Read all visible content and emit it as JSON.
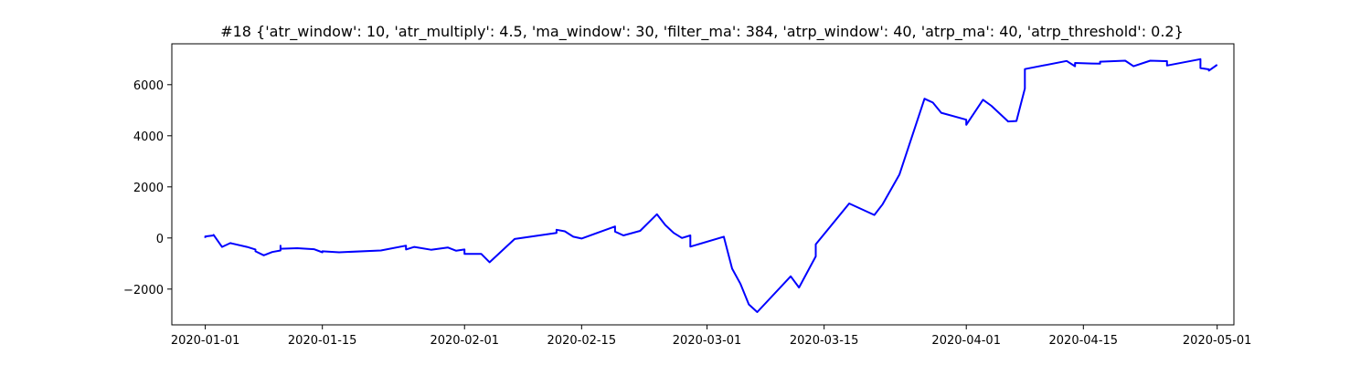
{
  "chart_data": {
    "type": "line",
    "title": "#18 {'atr_window': 10, 'atr_multiply': 4.5, 'ma_window': 30, 'filter_ma': 384, 'atrp_window': 40, 'atrp_ma': 40, 'atrp_threshold': 0.2}",
    "xlabel": "",
    "ylabel": "",
    "x_axis": {
      "type": "date",
      "range": [
        "2019-12-28",
        "2020-05-03"
      ],
      "ticks": [
        "2020-01-01",
        "2020-01-15",
        "2020-02-01",
        "2020-02-15",
        "2020-03-01",
        "2020-03-15",
        "2020-04-01",
        "2020-04-15",
        "2020-05-01"
      ]
    },
    "y_axis": {
      "range": [
        -3400,
        7600
      ],
      "ticks": [
        -2000,
        0,
        2000,
        4000,
        6000
      ],
      "tick_labels": [
        "−2000",
        "0",
        "2000",
        "4000",
        "6000"
      ]
    },
    "grid": false,
    "legend": "none",
    "series": [
      {
        "color": "#0000ff",
        "points": [
          [
            "2020-01-01",
            0
          ],
          [
            "2020-01-01",
            60
          ],
          [
            "2020-01-02",
            100
          ],
          [
            "2020-01-02",
            120
          ],
          [
            "2020-01-03",
            -350
          ],
          [
            "2020-01-04",
            -200
          ],
          [
            "2020-01-06",
            -350
          ],
          [
            "2020-01-07",
            -450
          ],
          [
            "2020-01-07",
            -520
          ],
          [
            "2020-01-08",
            -680
          ],
          [
            "2020-01-09",
            -550
          ],
          [
            "2020-01-10",
            -490
          ],
          [
            "2020-01-10",
            -300
          ],
          [
            "2020-01-10",
            -420
          ],
          [
            "2020-01-12",
            -400
          ],
          [
            "2020-01-14",
            -440
          ],
          [
            "2020-01-15",
            -560
          ],
          [
            "2020-01-15",
            -520
          ],
          [
            "2020-01-17",
            -560
          ],
          [
            "2020-01-22",
            -490
          ],
          [
            "2020-01-25",
            -300
          ],
          [
            "2020-01-25",
            -450
          ],
          [
            "2020-01-26",
            -350
          ],
          [
            "2020-01-28",
            -460
          ],
          [
            "2020-01-30",
            -370
          ],
          [
            "2020-01-31",
            -500
          ],
          [
            "2020-02-01",
            -450
          ],
          [
            "2020-02-01",
            -620
          ],
          [
            "2020-02-03",
            -620
          ],
          [
            "2020-02-04",
            -950
          ],
          [
            "2020-02-07",
            -40
          ],
          [
            "2020-02-12",
            200
          ],
          [
            "2020-02-12",
            320
          ],
          [
            "2020-02-13",
            260
          ],
          [
            "2020-02-14",
            50
          ],
          [
            "2020-02-15",
            -20
          ],
          [
            "2020-02-19",
            450
          ],
          [
            "2020-02-19",
            250
          ],
          [
            "2020-02-20",
            100
          ],
          [
            "2020-02-22",
            280
          ],
          [
            "2020-02-24",
            930
          ],
          [
            "2020-02-25",
            510
          ],
          [
            "2020-02-26",
            200
          ],
          [
            "2020-02-27",
            0
          ],
          [
            "2020-02-28",
            100
          ],
          [
            "2020-02-28",
            -340
          ],
          [
            "2020-03-03",
            50
          ],
          [
            "2020-03-04",
            -1200
          ],
          [
            "2020-03-05",
            -1800
          ],
          [
            "2020-03-06",
            -2600
          ],
          [
            "2020-03-07",
            -2900
          ],
          [
            "2020-03-11",
            -1500
          ],
          [
            "2020-03-12",
            -1940
          ],
          [
            "2020-03-14",
            -720
          ],
          [
            "2020-03-14",
            -250
          ],
          [
            "2020-03-18",
            1350
          ],
          [
            "2020-03-21",
            900
          ],
          [
            "2020-03-22",
            1320
          ],
          [
            "2020-03-24",
            2480
          ],
          [
            "2020-03-27",
            5450
          ],
          [
            "2020-03-28",
            5300
          ],
          [
            "2020-03-29",
            4900
          ],
          [
            "2020-04-01",
            4630
          ],
          [
            "2020-04-01",
            4430
          ],
          [
            "2020-04-03",
            5410
          ],
          [
            "2020-04-04",
            5170
          ],
          [
            "2020-04-06",
            4560
          ],
          [
            "2020-04-07",
            4580
          ],
          [
            "2020-04-08",
            5850
          ],
          [
            "2020-04-08",
            6610
          ],
          [
            "2020-04-13",
            6930
          ],
          [
            "2020-04-14",
            6720
          ],
          [
            "2020-04-14",
            6850
          ],
          [
            "2020-04-16",
            6830
          ],
          [
            "2020-04-17",
            6820
          ],
          [
            "2020-04-17",
            6900
          ],
          [
            "2020-04-20",
            6940
          ],
          [
            "2020-04-21",
            6720
          ],
          [
            "2020-04-23",
            6940
          ],
          [
            "2020-04-25",
            6920
          ],
          [
            "2020-04-25",
            6750
          ],
          [
            "2020-04-29",
            7000
          ],
          [
            "2020-04-29",
            6650
          ],
          [
            "2020-04-30",
            6600
          ],
          [
            "2020-04-30",
            6550
          ],
          [
            "2020-05-01",
            6780
          ]
        ]
      }
    ]
  }
}
